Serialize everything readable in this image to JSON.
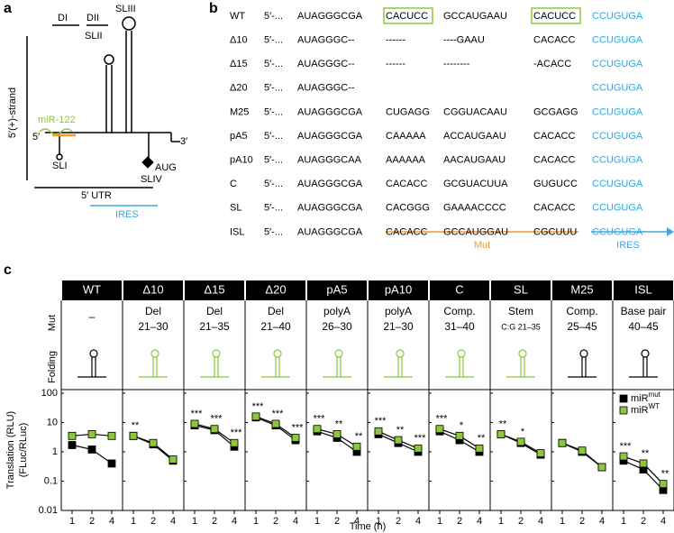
{
  "panel_a": {
    "label": "a",
    "texts": [
      "DI",
      "DII",
      "SLII",
      "SLIII",
      "5′(+)-strand",
      "miR-122",
      "5′",
      "3′",
      "SLI",
      "AUG",
      "SLIV",
      "5′ UTR",
      "IRES"
    ]
  },
  "panel_b": {
    "label": "b",
    "prefix": "5′-...",
    "mut_label": "Mut",
    "ires_label": "IRES",
    "rows": [
      {
        "name": "WT",
        "seq": [
          "AUAGGGCGA",
          "CACUCC",
          "GCCAUGAAU",
          "CACUCC"
        ],
        "ires": "CCUGUGA"
      },
      {
        "name": "Δ10",
        "seq": [
          "AUAGGGC--",
          "------",
          "----GAAU",
          "CACACC"
        ],
        "ires": "CCUGUGA"
      },
      {
        "name": "Δ15",
        "seq": [
          "AUAGGGC--",
          "------",
          "--------",
          "-ACACC"
        ],
        "ires": "CCUGUGA"
      },
      {
        "name": "Δ20",
        "seq": [
          "AUAGGGC--"
        ],
        "ires": "CCUGUGA"
      },
      {
        "name": "M25",
        "seq": [
          "AUAGGGCGA",
          "CUGAGG",
          "CGGUACAAU",
          "GCGAGG"
        ],
        "ires": "CCUGUGA"
      },
      {
        "name": "pA5",
        "seq": [
          "AUAGGGCGA",
          "CAAAAA",
          "ACCAUGAAU",
          "CACACC"
        ],
        "ires": "CCUGUGA"
      },
      {
        "name": "pA10",
        "seq": [
          "AUAGGGCAA",
          "AAAAAA",
          "AACAUGAAU",
          "CACACC"
        ],
        "ires": "CCUGUGA"
      },
      {
        "name": "C",
        "seq": [
          "AUAGGGCGA",
          "CACACC",
          "GCGUACUUA",
          "GUGUCC"
        ],
        "ires": "CCUGUGA"
      },
      {
        "name": "SL",
        "seq": [
          "AUAGGGCGA",
          "CACGGG",
          "GAAAACCCC",
          "CACACC"
        ],
        "ires": "CCUGUGA"
      },
      {
        "name": "ISL",
        "seq": [
          "AUAGGGCGA",
          "CACACC",
          "GCCAUGGAU",
          "CGCUUU"
        ],
        "ires": "CCUGUGA"
      }
    ]
  },
  "panel_c": {
    "label": "c",
    "row_labels": [
      "Mut",
      "Folding"
    ],
    "y_label": [
      "Translation (RLU)",
      "(FLuc/RLuc)"
    ],
    "x_label": "Time (h)",
    "scale": "log",
    "ylim": [
      0.01,
      100
    ],
    "yticks": [
      0.01,
      0.1,
      1,
      10,
      100
    ],
    "legend": [
      {
        "name": "miR",
        "sup": "mut",
        "color": "#000000"
      },
      {
        "name": "miR",
        "sup": "WT",
        "color": "#8dc63f"
      }
    ]
  },
  "chart_data": [
    {
      "type": "line",
      "title": "WT",
      "mut_text": [
        "–"
      ],
      "fold_color": "#000000",
      "x": [
        1,
        2,
        4
      ],
      "series": [
        {
          "values": [
            1.7,
            1.2,
            0.4
          ]
        },
        {
          "values": [
            3.5,
            4,
            3.5
          ]
        }
      ],
      "annotations": [
        null,
        null,
        null
      ]
    },
    {
      "type": "line",
      "title": "Δ10",
      "mut_text": [
        "Del",
        "21–30"
      ],
      "fold_color": "#8dc63f",
      "x": [
        1,
        2,
        4
      ],
      "series": [
        {
          "values": [
            3.5,
            1.8,
            0.5
          ]
        },
        {
          "values": [
            3.5,
            2,
            0.55
          ]
        }
      ],
      "annotations": [
        "**",
        null,
        null
      ]
    },
    {
      "type": "line",
      "title": "Δ15",
      "mut_text": [
        "Del",
        "21–35"
      ],
      "fold_color": "#8dc63f",
      "x": [
        1,
        2,
        4
      ],
      "series": [
        {
          "values": [
            8,
            5.5,
            1.5
          ]
        },
        {
          "values": [
            9,
            6,
            2
          ]
        }
      ],
      "annotations": [
        "***",
        "***",
        "***"
      ]
    },
    {
      "type": "line",
      "title": "Δ20",
      "mut_text": [
        "Del",
        "21–40"
      ],
      "fold_color": "#8dc63f",
      "x": [
        1,
        2,
        4
      ],
      "series": [
        {
          "values": [
            15,
            8,
            2.5
          ]
        },
        {
          "values": [
            16,
            9,
            3
          ]
        }
      ],
      "annotations": [
        "***",
        "***",
        "***"
      ]
    },
    {
      "type": "line",
      "title": "pA5",
      "mut_text": [
        "polyA",
        "26–30"
      ],
      "fold_color": "#8dc63f",
      "x": [
        1,
        2,
        4
      ],
      "series": [
        {
          "values": [
            5,
            3,
            1
          ]
        },
        {
          "values": [
            6,
            4,
            1.5
          ]
        }
      ],
      "annotations": [
        "***",
        "**",
        "**"
      ]
    },
    {
      "type": "line",
      "title": "pA10",
      "mut_text": [
        "polyA",
        "21–30"
      ],
      "fold_color": "#8dc63f",
      "x": [
        1,
        2,
        4
      ],
      "series": [
        {
          "values": [
            4,
            2,
            1
          ]
        },
        {
          "values": [
            5,
            2.5,
            1.3
          ]
        }
      ],
      "annotations": [
        "***",
        "**",
        "***"
      ]
    },
    {
      "type": "line",
      "title": "C",
      "mut_text": [
        "Comp.",
        "31–40"
      ],
      "fold_color": "#8dc63f",
      "x": [
        1,
        2,
        4
      ],
      "series": [
        {
          "values": [
            5,
            2.5,
            1
          ]
        },
        {
          "values": [
            6,
            3.5,
            1.3
          ]
        }
      ],
      "annotations": [
        "***",
        "*",
        "**"
      ]
    },
    {
      "type": "line",
      "title": "SL",
      "mut_text": [
        "Stem",
        "C:G 21–35"
      ],
      "fold_color": "#8dc63f",
      "x": [
        1,
        2,
        4
      ],
      "series": [
        {
          "values": [
            4,
            2,
            0.8
          ]
        },
        {
          "values": [
            4,
            2.2,
            0.9
          ]
        }
      ],
      "annotations": [
        "**",
        "*",
        null
      ]
    },
    {
      "type": "line",
      "title": "M25",
      "mut_text": [
        "Comp.",
        "25–45"
      ],
      "fold_color": "#000000",
      "x": [
        1,
        2,
        4
      ],
      "series": [
        {
          "values": [
            2,
            1,
            0.3
          ]
        },
        {
          "values": [
            2,
            1.1,
            0.3
          ]
        }
      ],
      "annotations": [
        null,
        null,
        null
      ]
    },
    {
      "type": "line",
      "title": "ISL",
      "mut_text": [
        "Base pair",
        "40–45"
      ],
      "fold_color": "#000000",
      "x": [
        1,
        2,
        4
      ],
      "series": [
        {
          "values": [
            0.5,
            0.25,
            0.05
          ]
        },
        {
          "values": [
            0.7,
            0.4,
            0.08
          ]
        }
      ],
      "annotations": [
        "***",
        "**",
        "**"
      ]
    }
  ]
}
